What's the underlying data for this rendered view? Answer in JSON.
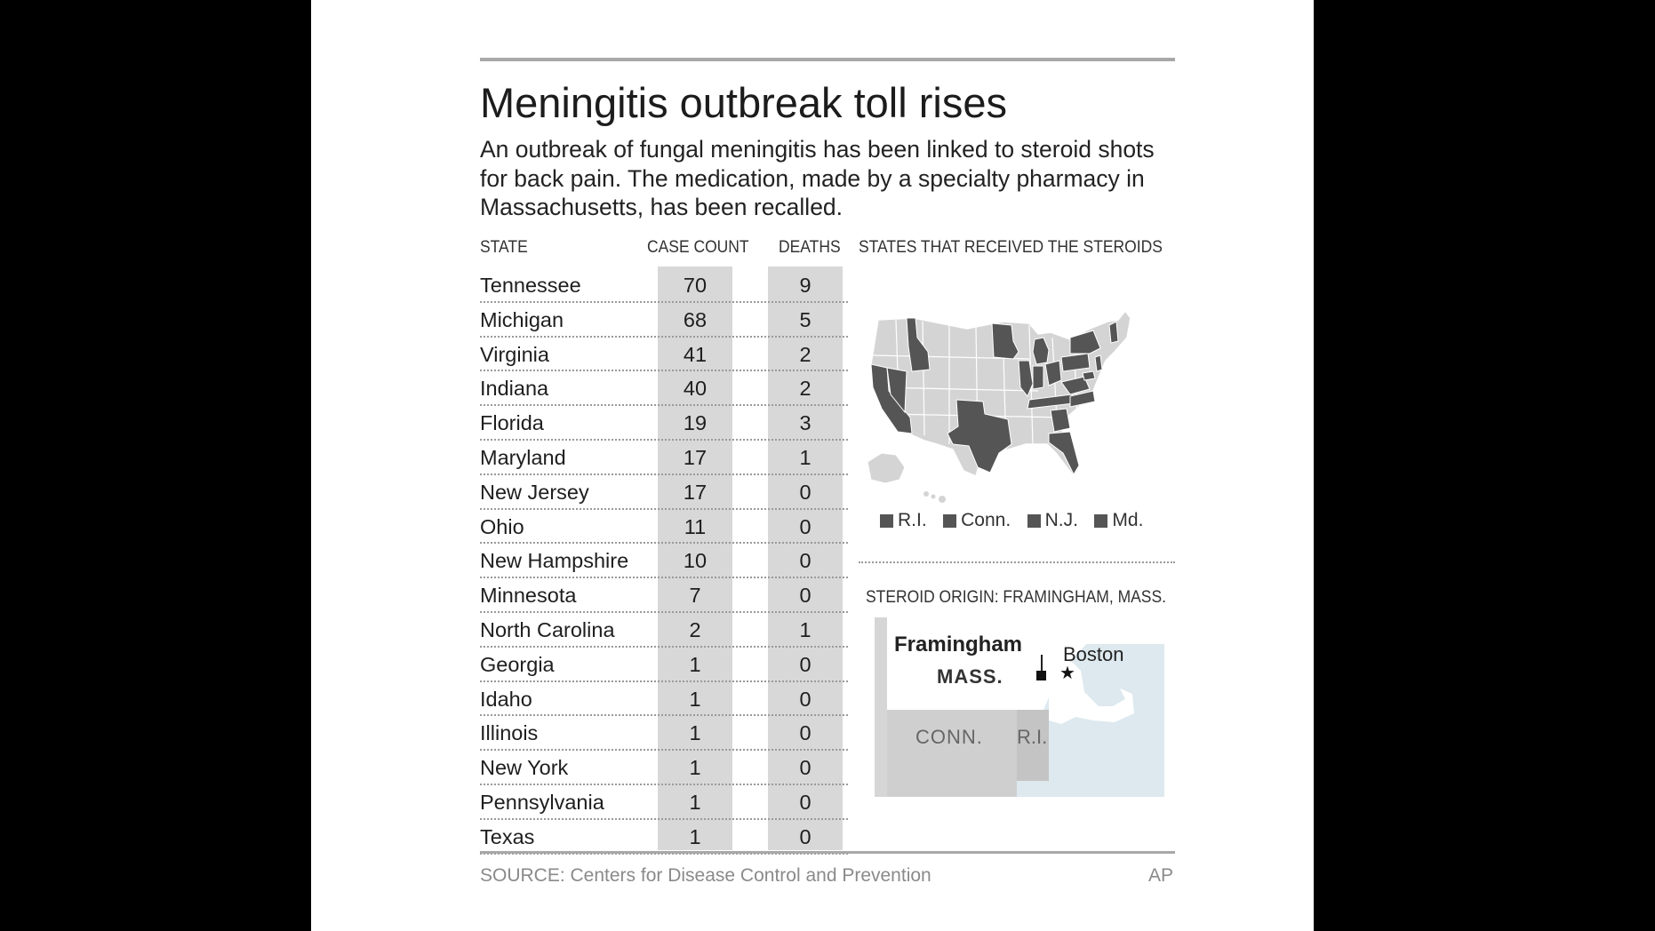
{
  "colors": {
    "background": "#000000",
    "panel": "#ffffff",
    "rule": "#a8a8a8",
    "column_band": "#d8d8d8",
    "received_state": "#555555",
    "other_state": "#d4d4d4",
    "water": "#dde9ee",
    "source_text": "#8a8a8a"
  },
  "graphic": {
    "title": "Meningitis outbreak toll rises",
    "subtitle": "An outbreak of fungal meningitis has been linked to steroid shots for back pain. The medication, made by a specialty pharmacy in Massachusetts, has been recalled."
  },
  "table": {
    "headers": {
      "state": "STATE",
      "case_count": "CASE COUNT",
      "deaths": "DEATHS"
    },
    "rows": [
      {
        "state": "Tennessee",
        "cases": "70",
        "deaths": "9"
      },
      {
        "state": "Michigan",
        "cases": "68",
        "deaths": "5"
      },
      {
        "state": "Virginia",
        "cases": "41",
        "deaths": "2"
      },
      {
        "state": "Indiana",
        "cases": "40",
        "deaths": "2"
      },
      {
        "state": "Florida",
        "cases": "19",
        "deaths": "3"
      },
      {
        "state": "Maryland",
        "cases": "17",
        "deaths": "1"
      },
      {
        "state": "New Jersey",
        "cases": "17",
        "deaths": "0"
      },
      {
        "state": "Ohio",
        "cases": "11",
        "deaths": "0"
      },
      {
        "state": "New Hampshire",
        "cases": "10",
        "deaths": "0"
      },
      {
        "state": "Minnesota",
        "cases": "7",
        "deaths": "0"
      },
      {
        "state": "North Carolina",
        "cases": "2",
        "deaths": "1"
      },
      {
        "state": "Georgia",
        "cases": "1",
        "deaths": "0"
      },
      {
        "state": "Idaho",
        "cases": "1",
        "deaths": "0"
      },
      {
        "state": "Illinois",
        "cases": "1",
        "deaths": "0"
      },
      {
        "state": "New York",
        "cases": "1",
        "deaths": "0"
      },
      {
        "state": "Pennsylvania",
        "cases": "1",
        "deaths": "0"
      },
      {
        "state": "Texas",
        "cases": "1",
        "deaths": "0"
      }
    ]
  },
  "map": {
    "heading": "STATES THAT RECEIVED THE STEROIDS",
    "legend": [
      "R.I.",
      "Conn.",
      "N.J.",
      "Md."
    ]
  },
  "origin": {
    "heading": "STEROID ORIGIN: FRAMINGHAM, MASS.",
    "labels": {
      "framingham": "Framingham",
      "mass": "MASS.",
      "boston": "Boston",
      "conn": "CONN.",
      "ri": "R.I."
    }
  },
  "footer": {
    "source": "SOURCE: Centers for Disease Control and Prevention",
    "credit": "AP"
  }
}
